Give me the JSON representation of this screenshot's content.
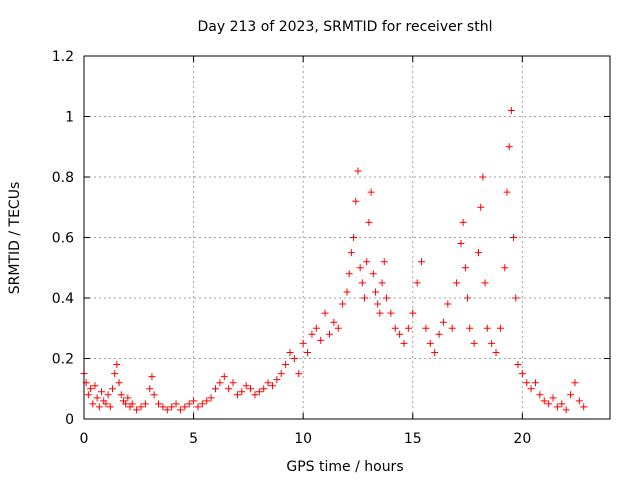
{
  "chart_data": {
    "type": "scatter",
    "title": "Day 213 of 2023, SRMTID for receiver sthl",
    "xlabel": "GPS time / hours",
    "ylabel": "SRMTID / TECUs",
    "xlim": [
      0,
      24
    ],
    "ylim": [
      0,
      1.2
    ],
    "xticks": [
      {
        "value": 0,
        "label": "0"
      },
      {
        "value": 5,
        "label": "5"
      },
      {
        "value": 10,
        "label": "10"
      },
      {
        "value": 15,
        "label": "15"
      },
      {
        "value": 20,
        "label": "20"
      }
    ],
    "yticks": [
      {
        "value": 0,
        "label": "0"
      },
      {
        "value": 0.2,
        "label": "0.2"
      },
      {
        "value": 0.4,
        "label": "0.4"
      },
      {
        "value": 0.6,
        "label": "0.6"
      },
      {
        "value": 0.8,
        "label": "0.8"
      },
      {
        "value": 1.0,
        "label": "1"
      },
      {
        "value": 1.2,
        "label": "1.2"
      }
    ],
    "grid": true,
    "marker": "+",
    "series": [
      {
        "name": "SRMTID",
        "color": "#ff0000",
        "points": [
          [
            0.0,
            0.15
          ],
          [
            0.1,
            0.12
          ],
          [
            0.2,
            0.08
          ],
          [
            0.3,
            0.1
          ],
          [
            0.4,
            0.05
          ],
          [
            0.5,
            0.11
          ],
          [
            0.6,
            0.07
          ],
          [
            0.7,
            0.04
          ],
          [
            0.8,
            0.09
          ],
          [
            0.9,
            0.06
          ],
          [
            1.0,
            0.05
          ],
          [
            1.1,
            0.08
          ],
          [
            1.2,
            0.04
          ],
          [
            1.3,
            0.1
          ],
          [
            1.4,
            0.15
          ],
          [
            1.5,
            0.18
          ],
          [
            1.6,
            0.12
          ],
          [
            1.7,
            0.08
          ],
          [
            1.8,
            0.06
          ],
          [
            1.9,
            0.05
          ],
          [
            2.0,
            0.07
          ],
          [
            2.1,
            0.04
          ],
          [
            2.2,
            0.05
          ],
          [
            2.4,
            0.03
          ],
          [
            2.6,
            0.04
          ],
          [
            2.8,
            0.05
          ],
          [
            3.0,
            0.1
          ],
          [
            3.1,
            0.14
          ],
          [
            3.2,
            0.08
          ],
          [
            3.4,
            0.05
          ],
          [
            3.6,
            0.04
          ],
          [
            3.8,
            0.03
          ],
          [
            4.0,
            0.04
          ],
          [
            4.2,
            0.05
          ],
          [
            4.4,
            0.03
          ],
          [
            4.6,
            0.04
          ],
          [
            4.8,
            0.05
          ],
          [
            5.0,
            0.06
          ],
          [
            5.2,
            0.04
          ],
          [
            5.4,
            0.05
          ],
          [
            5.6,
            0.06
          ],
          [
            5.8,
            0.07
          ],
          [
            6.0,
            0.1
          ],
          [
            6.2,
            0.12
          ],
          [
            6.4,
            0.14
          ],
          [
            6.6,
            0.1
          ],
          [
            6.8,
            0.12
          ],
          [
            7.0,
            0.08
          ],
          [
            7.2,
            0.09
          ],
          [
            7.4,
            0.11
          ],
          [
            7.6,
            0.1
          ],
          [
            7.8,
            0.08
          ],
          [
            8.0,
            0.09
          ],
          [
            8.2,
            0.1
          ],
          [
            8.4,
            0.12
          ],
          [
            8.6,
            0.11
          ],
          [
            8.8,
            0.13
          ],
          [
            9.0,
            0.15
          ],
          [
            9.2,
            0.18
          ],
          [
            9.4,
            0.22
          ],
          [
            9.6,
            0.2
          ],
          [
            9.8,
            0.15
          ],
          [
            10.0,
            0.25
          ],
          [
            10.2,
            0.22
          ],
          [
            10.4,
            0.28
          ],
          [
            10.6,
            0.3
          ],
          [
            10.8,
            0.26
          ],
          [
            11.0,
            0.35
          ],
          [
            11.2,
            0.28
          ],
          [
            11.4,
            0.32
          ],
          [
            11.6,
            0.3
          ],
          [
            11.8,
            0.38
          ],
          [
            12.0,
            0.42
          ],
          [
            12.1,
            0.48
          ],
          [
            12.2,
            0.55
          ],
          [
            12.3,
            0.6
          ],
          [
            12.4,
            0.72
          ],
          [
            12.5,
            0.82
          ],
          [
            12.6,
            0.5
          ],
          [
            12.7,
            0.45
          ],
          [
            12.8,
            0.4
          ],
          [
            12.9,
            0.52
          ],
          [
            13.0,
            0.65
          ],
          [
            13.1,
            0.75
          ],
          [
            13.2,
            0.48
          ],
          [
            13.3,
            0.42
          ],
          [
            13.4,
            0.38
          ],
          [
            13.5,
            0.35
          ],
          [
            13.6,
            0.45
          ],
          [
            13.7,
            0.52
          ],
          [
            13.8,
            0.4
          ],
          [
            14.0,
            0.35
          ],
          [
            14.2,
            0.3
          ],
          [
            14.4,
            0.28
          ],
          [
            14.6,
            0.25
          ],
          [
            14.8,
            0.3
          ],
          [
            15.0,
            0.35
          ],
          [
            15.2,
            0.45
          ],
          [
            15.4,
            0.52
          ],
          [
            15.6,
            0.3
          ],
          [
            15.8,
            0.25
          ],
          [
            16.0,
            0.22
          ],
          [
            16.2,
            0.28
          ],
          [
            16.4,
            0.32
          ],
          [
            16.6,
            0.38
          ],
          [
            16.8,
            0.3
          ],
          [
            17.0,
            0.45
          ],
          [
            17.2,
            0.58
          ],
          [
            17.3,
            0.65
          ],
          [
            17.4,
            0.5
          ],
          [
            17.5,
            0.4
          ],
          [
            17.6,
            0.3
          ],
          [
            17.8,
            0.25
          ],
          [
            18.0,
            0.55
          ],
          [
            18.1,
            0.7
          ],
          [
            18.2,
            0.8
          ],
          [
            18.3,
            0.45
          ],
          [
            18.4,
            0.3
          ],
          [
            18.6,
            0.25
          ],
          [
            18.8,
            0.22
          ],
          [
            19.0,
            0.3
          ],
          [
            19.2,
            0.5
          ],
          [
            19.3,
            0.75
          ],
          [
            19.4,
            0.9
          ],
          [
            19.5,
            1.02
          ],
          [
            19.6,
            0.6
          ],
          [
            19.7,
            0.4
          ],
          [
            19.8,
            0.18
          ],
          [
            20.0,
            0.15
          ],
          [
            20.2,
            0.12
          ],
          [
            20.4,
            0.1
          ],
          [
            20.6,
            0.12
          ],
          [
            20.8,
            0.08
          ],
          [
            21.0,
            0.06
          ],
          [
            21.2,
            0.05
          ],
          [
            21.4,
            0.07
          ],
          [
            21.6,
            0.04
          ],
          [
            21.8,
            0.05
          ],
          [
            22.0,
            0.03
          ],
          [
            22.2,
            0.08
          ],
          [
            22.4,
            0.12
          ],
          [
            22.6,
            0.06
          ],
          [
            22.8,
            0.04
          ]
        ]
      }
    ]
  }
}
